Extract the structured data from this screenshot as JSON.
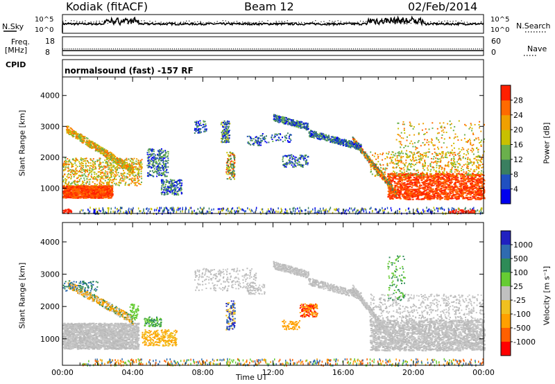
{
  "header": {
    "station": "Kodiak (fitACF)",
    "beam": "Beam 12",
    "date": "02/Feb/2014"
  },
  "strips": {
    "nsky_label": "N.Sky",
    "nsky_ticks": [
      "10^5",
      "10^0"
    ],
    "nsearch_label": "N.Search",
    "nsearch_ticks": [
      "10^5",
      "10^0"
    ],
    "freq_label": "Freq.",
    "freq_unit": "[MHz]",
    "freq_ticks": [
      "18",
      "8"
    ],
    "nave_label": "Nave",
    "nave_ticks": [
      "60",
      "0"
    ],
    "cpid_label": "CPID",
    "cpid_text": "normalsound (fast) -157 RF"
  },
  "chart_data": [
    {
      "type": "heatmap",
      "panel": "power",
      "ylabel": "Slant Range [km]",
      "xlabel": "",
      "x_range_hours": [
        0,
        24
      ],
      "ylim": [
        180,
        4600
      ],
      "yticks": [
        1000,
        2000,
        3000,
        4000
      ],
      "colorbar": {
        "label": "Power [dB]",
        "ticks": [
          "4",
          "8",
          "12",
          "16",
          "20",
          "24",
          "28"
        ],
        "colors": [
          "#0000ee",
          "#2050c0",
          "#3a7f60",
          "#6ab04c",
          "#c8c000",
          "#f0a000",
          "#ff6a00",
          "#ff2000"
        ]
      }
    },
    {
      "type": "heatmap",
      "panel": "velocity",
      "ylabel": "Slant Range [km]",
      "xlabel": "Time UT",
      "x_range_hours": [
        0,
        24
      ],
      "ylim": [
        180,
        4600
      ],
      "yticks": [
        1000,
        2000,
        3000,
        4000
      ],
      "xticks": [
        "00:00",
        "04:00",
        "08:00",
        "12:00",
        "16:00",
        "20:00",
        "00:00"
      ],
      "colorbar": {
        "label": "Velocity [m s⁻¹]",
        "ticks": [
          "1000",
          "500",
          "100",
          "25",
          "-25",
          "-100",
          "-500",
          "-1000"
        ],
        "colors": [
          "#2020c0",
          "#2f6bb0",
          "#2e8b57",
          "#66cc33",
          "#c0c0c0",
          "#f0c020",
          "#ffa000",
          "#ff6000",
          "#ff0000"
        ]
      }
    }
  ],
  "colors": {
    "power_scatter": [
      "#ff2000",
      "#ff6a00",
      "#f0a000",
      "#c8c000",
      "#6ab04c",
      "#3a7f60",
      "#2050c0"
    ],
    "velocity_ground": "#c0c0c0",
    "velocity_accent": [
      "#f0a000",
      "#ff6000",
      "#66cc33",
      "#2e8b57",
      "#2020c0"
    ]
  }
}
